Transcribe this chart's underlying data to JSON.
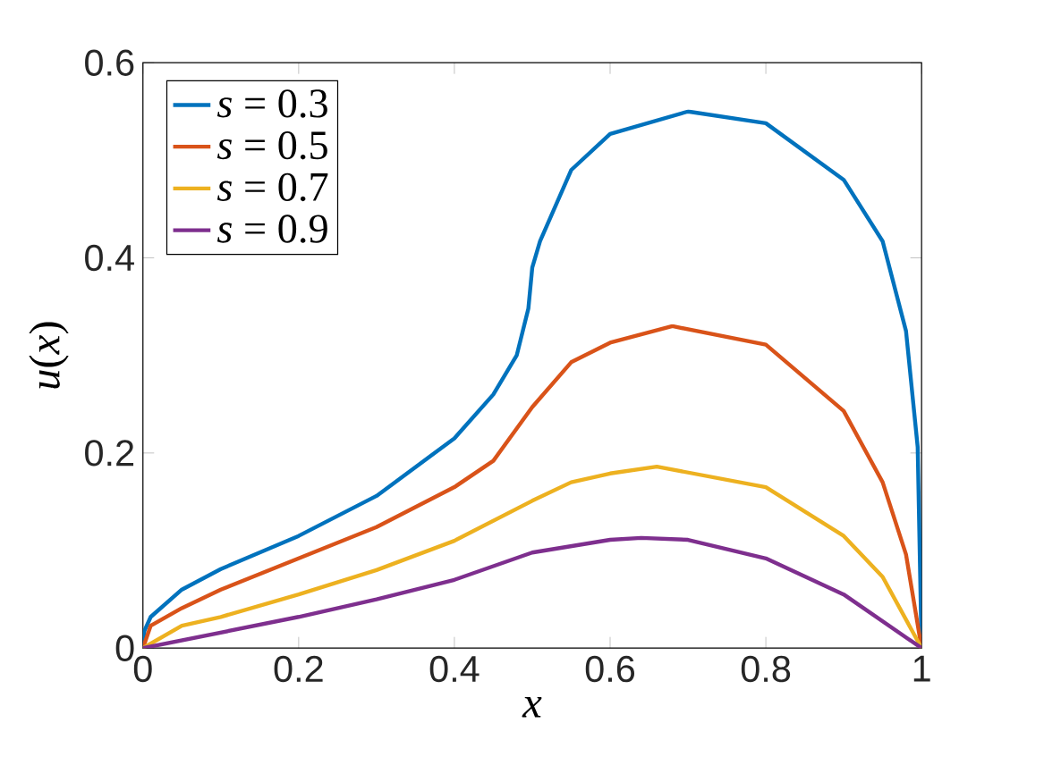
{
  "chart_data": {
    "type": "line",
    "xlabel": "*x*",
    "ylabel": "*u*(*x*)",
    "xlim": [
      0,
      1
    ],
    "ylim": [
      0,
      0.6
    ],
    "xticks": [
      0,
      0.2,
      0.4,
      0.6,
      0.8,
      1
    ],
    "yticks": [
      0,
      0.2,
      0.4,
      0.6
    ],
    "grid": false,
    "legend": "top left",
    "marker": "none",
    "line_style": "solid",
    "series": [
      {
        "name": "*s* = 0.3",
        "color": "#0072bd",
        "x": [
          0,
          0.002,
          0.01,
          0.05,
          0.1,
          0.2,
          0.3,
          0.4,
          0.45,
          0.48,
          0.495,
          0.5,
          0.51,
          0.55,
          0.6,
          0.7,
          0.8,
          0.9,
          0.95,
          0.98,
          0.995,
          1
        ],
        "values": [
          0,
          0.018,
          0.032,
          0.06,
          0.081,
          0.115,
          0.156,
          0.215,
          0.26,
          0.3,
          0.348,
          0.39,
          0.417,
          0.49,
          0.527,
          0.55,
          0.538,
          0.48,
          0.417,
          0.325,
          0.206,
          0
        ]
      },
      {
        "name": "*s* = 0.5",
        "color": "#d95319",
        "x": [
          0,
          0.01,
          0.05,
          0.1,
          0.2,
          0.3,
          0.4,
          0.45,
          0.5,
          0.55,
          0.6,
          0.68,
          0.8,
          0.9,
          0.95,
          0.98,
          1
        ],
        "values": [
          0,
          0.023,
          0.041,
          0.06,
          0.092,
          0.124,
          0.165,
          0.192,
          0.247,
          0.293,
          0.313,
          0.33,
          0.311,
          0.243,
          0.17,
          0.096,
          0
        ]
      },
      {
        "name": "*s* = 0.7",
        "color": "#edb120",
        "x": [
          0,
          0.05,
          0.1,
          0.2,
          0.3,
          0.4,
          0.5,
          0.55,
          0.6,
          0.66,
          0.8,
          0.9,
          0.95,
          1
        ],
        "values": [
          0,
          0.023,
          0.032,
          0.055,
          0.08,
          0.11,
          0.151,
          0.17,
          0.179,
          0.186,
          0.165,
          0.115,
          0.073,
          0
        ]
      },
      {
        "name": "*s* = 0.9",
        "color": "#7e2f8e",
        "x": [
          0,
          0.1,
          0.2,
          0.3,
          0.4,
          0.5,
          0.6,
          0.64,
          0.7,
          0.8,
          0.9,
          1
        ],
        "values": [
          0,
          0.016,
          0.032,
          0.05,
          0.07,
          0.098,
          0.111,
          0.113,
          0.111,
          0.092,
          0.055,
          0
        ]
      }
    ]
  }
}
